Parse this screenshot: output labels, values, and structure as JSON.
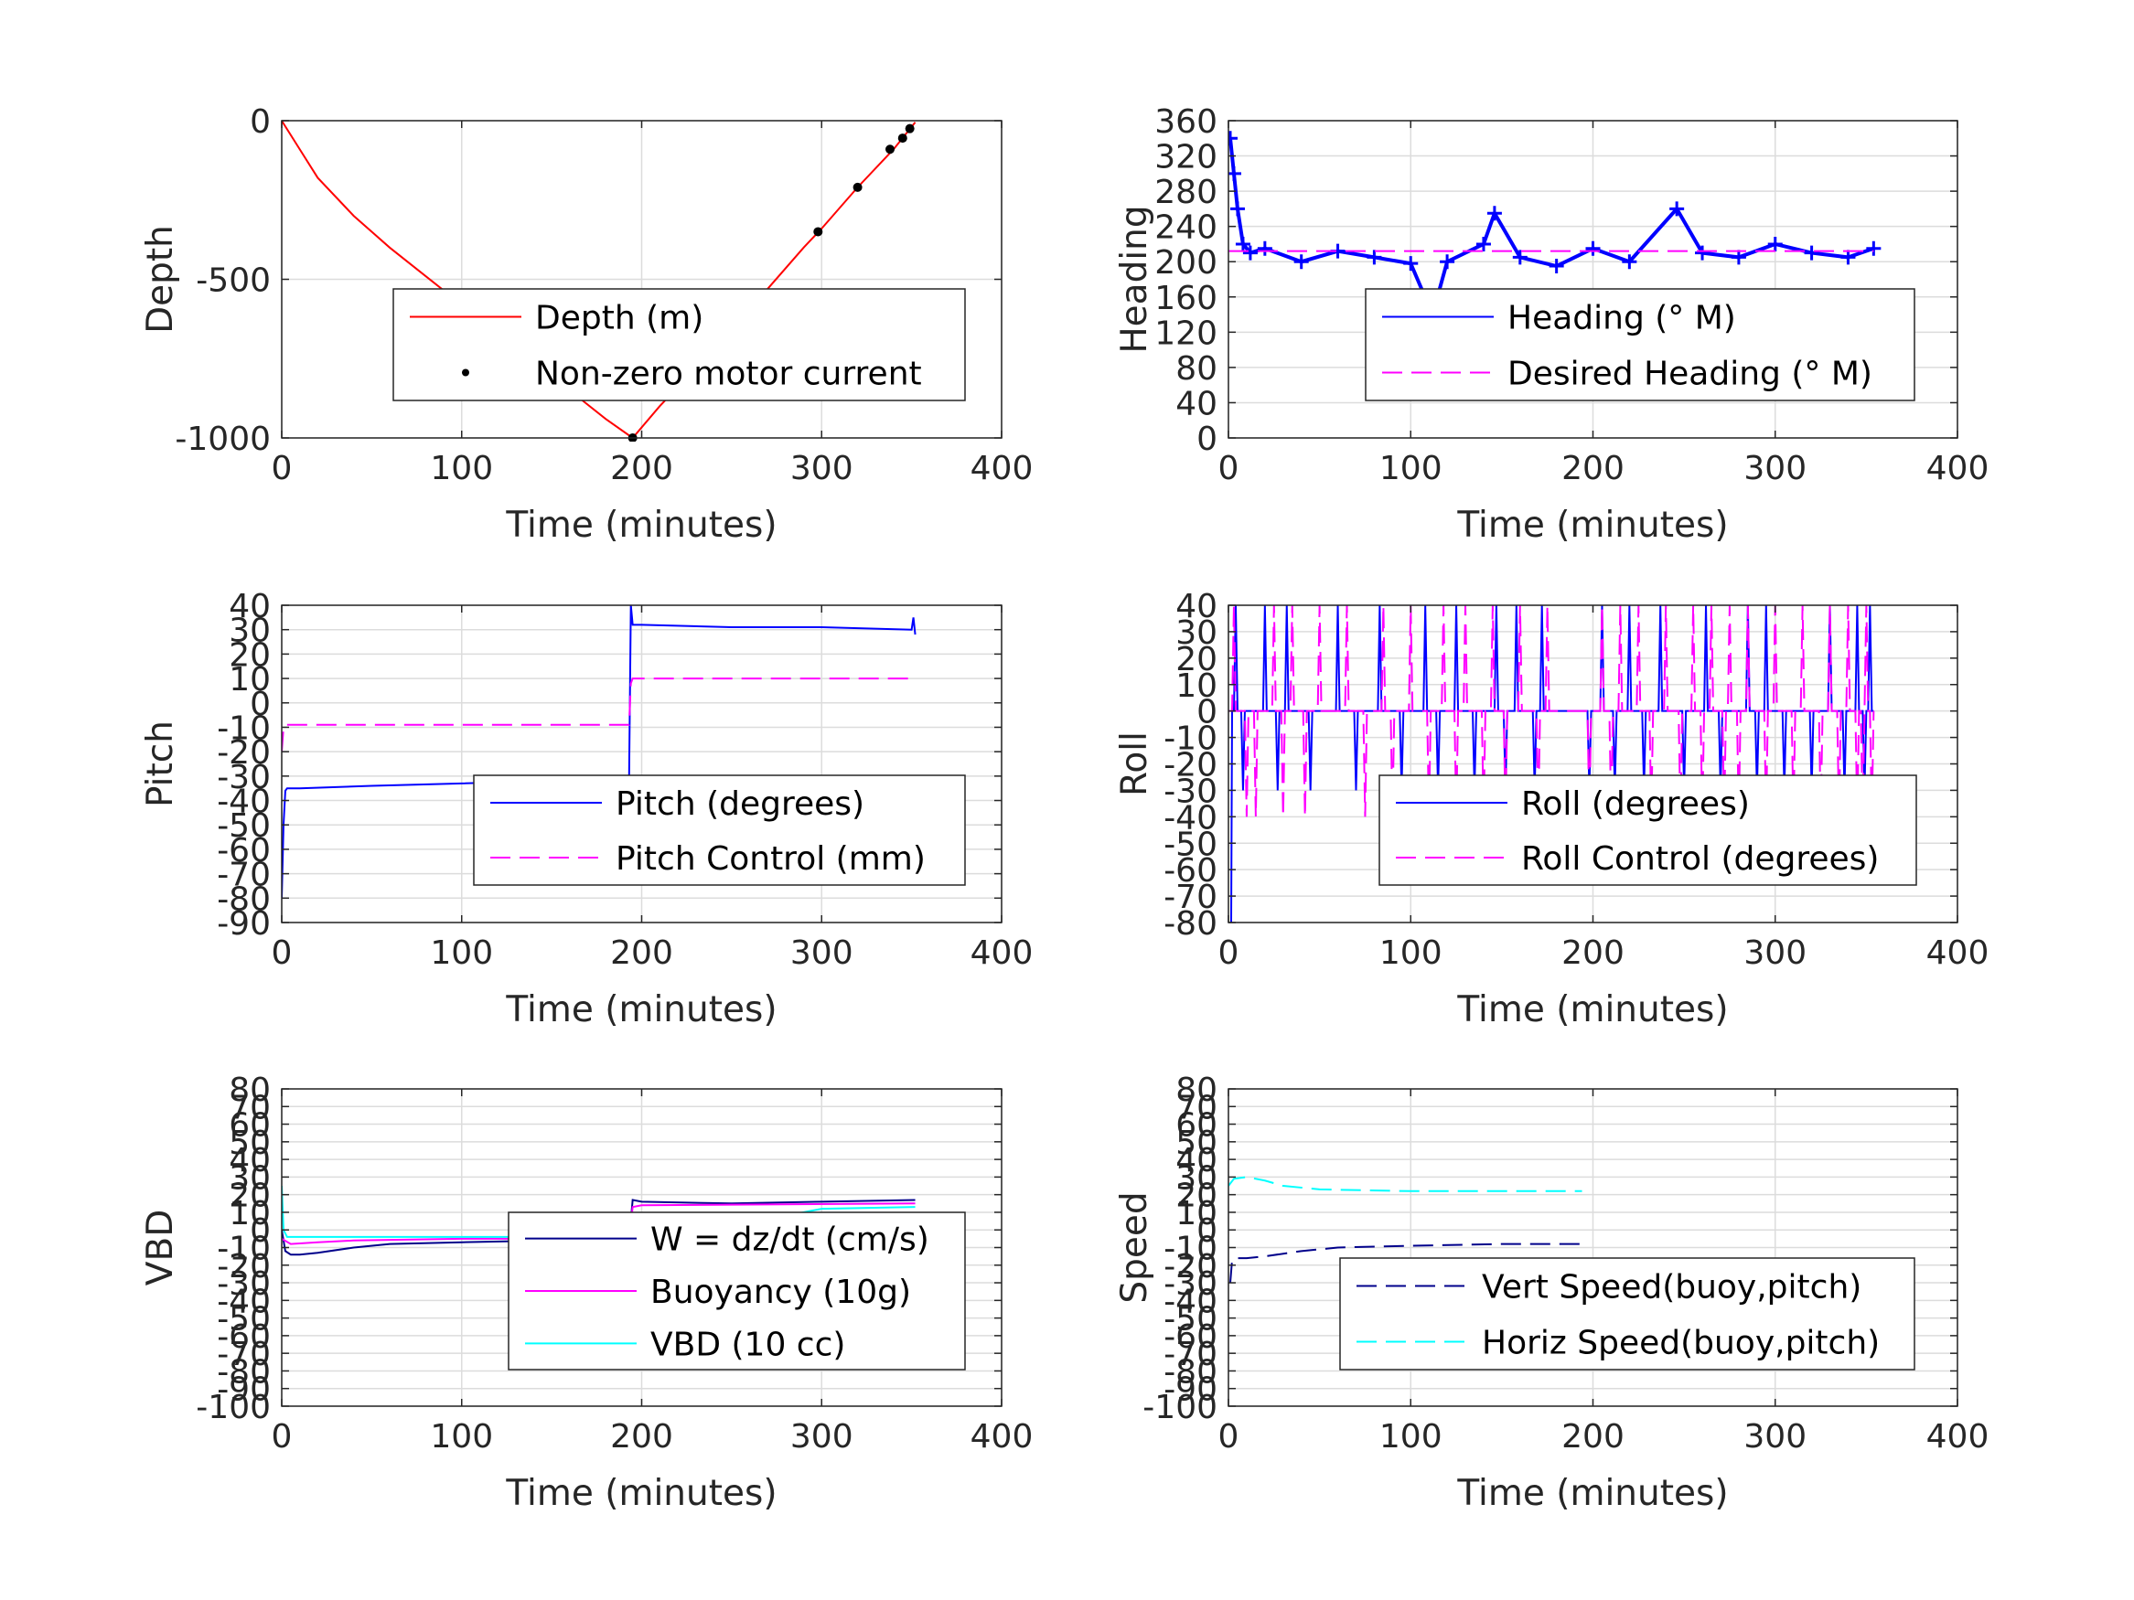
{
  "chart_data": [
    {
      "type": "line",
      "xlabel": "Time (minutes)",
      "ylabel": "Depth",
      "xlim": [
        0,
        400
      ],
      "ylim": [
        -1000,
        0
      ],
      "xticks": [
        0,
        100,
        200,
        300,
        400
      ],
      "yticks": [
        -1000,
        -500,
        0
      ],
      "ytick_labels": [
        "-1000",
        "-500",
        "0"
      ],
      "grid": true,
      "legend": "center-right",
      "series": [
        {
          "name": "Depth (m)",
          "color": "#ff0000",
          "style": "solid",
          "x": [
            0,
            10,
            20,
            40,
            60,
            80,
            100,
            120,
            140,
            160,
            180,
            195,
            210,
            230,
            250,
            270,
            290,
            300,
            320,
            340,
            352
          ],
          "y": [
            0,
            -90,
            -180,
            -300,
            -400,
            -490,
            -580,
            -670,
            -760,
            -850,
            -940,
            -1000,
            -900,
            -780,
            -660,
            -530,
            -400,
            -340,
            -210,
            -90,
            -5
          ]
        },
        {
          "name": "Non-zero motor current",
          "color": "#000000",
          "style": "markers",
          "x": [
            195,
            298,
            320,
            338,
            345,
            349
          ],
          "y": [
            -1000,
            -350,
            -210,
            -90,
            -55,
            -25
          ]
        }
      ]
    },
    {
      "type": "line",
      "xlabel": "Time (minutes)",
      "ylabel": "Heading",
      "xlim": [
        0,
        400
      ],
      "ylim": [
        0,
        360
      ],
      "xticks": [
        0,
        100,
        200,
        300,
        400
      ],
      "yticks": [
        0,
        40,
        80,
        120,
        160,
        200,
        240,
        280,
        320,
        360
      ],
      "ytick_labels": [
        "0",
        "40",
        "80",
        "120",
        "160",
        "200",
        "240",
        "280",
        "320",
        "360"
      ],
      "grid": true,
      "legend": "lower-right",
      "series": [
        {
          "name": "Heading (° M)",
          "color": "#0000ff",
          "style": "plus-markers",
          "x": [
            1,
            3,
            5,
            8,
            12,
            20,
            40,
            60,
            80,
            100,
            112,
            120,
            140,
            146,
            160,
            180,
            200,
            220,
            246,
            260,
            280,
            300,
            320,
            340,
            354
          ],
          "y": [
            340,
            300,
            260,
            220,
            210,
            215,
            200,
            212,
            205,
            198,
            140,
            200,
            220,
            255,
            205,
            195,
            215,
            200,
            260,
            210,
            205,
            220,
            210,
            205,
            215
          ]
        },
        {
          "name": "Desired Heading (° M)",
          "color": "#ff00ff",
          "style": "dashed",
          "x": [
            0,
            354
          ],
          "y": [
            212,
            212
          ]
        }
      ]
    },
    {
      "type": "line",
      "xlabel": "Time (minutes)",
      "ylabel": "Pitch",
      "xlim": [
        0,
        400
      ],
      "ylim": [
        -90,
        40
      ],
      "xticks": [
        0,
        100,
        200,
        300,
        400
      ],
      "yticks": [
        -90,
        -80,
        -70,
        -60,
        -50,
        -40,
        -30,
        -20,
        -10,
        0,
        10,
        20,
        30,
        40
      ],
      "ytick_labels": [
        "-90",
        "-80",
        "-70",
        "-60",
        "-50",
        "-40",
        "-30",
        "-20",
        "-10",
        "0",
        "10",
        "20",
        "30",
        "40"
      ],
      "grid": true,
      "legend": "lower-right",
      "series": [
        {
          "name": "Pitch (degrees)",
          "color": "#0000ff",
          "style": "solid",
          "x": [
            0,
            1,
            2,
            3,
            10,
            50,
            100,
            150,
            193,
            194,
            195,
            196,
            200,
            250,
            300,
            350,
            351,
            352
          ],
          "y": [
            -80,
            -50,
            -36,
            -35,
            -35,
            -34,
            -33,
            -32,
            -32,
            40,
            32,
            32,
            32,
            31,
            31,
            30,
            35,
            28
          ]
        },
        {
          "name": "Pitch Control (mm)",
          "color": "#ff00ff",
          "style": "dashed",
          "x": [
            0,
            1,
            2,
            5,
            193,
            194,
            195,
            200,
            352
          ],
          "y": [
            -20,
            -10,
            -9,
            -9,
            -9,
            8,
            10,
            10,
            10
          ]
        }
      ]
    },
    {
      "type": "line",
      "xlabel": "Time (minutes)",
      "ylabel": "Roll",
      "xlim": [
        0,
        400
      ],
      "ylim": [
        -80,
        40
      ],
      "xticks": [
        0,
        100,
        200,
        300,
        400
      ],
      "yticks": [
        -80,
        -70,
        -60,
        -50,
        -40,
        -30,
        -20,
        -10,
        0,
        10,
        20,
        30,
        40
      ],
      "ytick_labels": [
        "-80",
        "-70",
        "-60",
        "-50",
        "-40",
        "-30",
        "-20",
        "-10",
        "0",
        "10",
        "20",
        "30",
        "40"
      ],
      "grid": true,
      "legend": "lower-right",
      "series": [
        {
          "name": "Roll (degrees)",
          "color": "#0000ff",
          "style": "solid",
          "spikes_up": [
            4,
            20,
            32,
            60,
            83,
            108,
            125,
            147,
            158,
            172,
            205,
            220,
            237,
            262,
            285,
            295,
            330,
            345,
            352
          ],
          "spikes_down": [
            8,
            27,
            45,
            70,
            95,
            115,
            135,
            152,
            168,
            198,
            212,
            228,
            250,
            270,
            290,
            305,
            320,
            338,
            349
          ],
          "baseline": 0
        },
        {
          "name": "Roll Control (degrees)",
          "color": "#ff00ff",
          "style": "dashed",
          "spikes_up": [
            3,
            25,
            35,
            50,
            65,
            85,
            100,
            118,
            130,
            145,
            160,
            175,
            205,
            215,
            225,
            240,
            255,
            265,
            275,
            285,
            300,
            315,
            330,
            340,
            350
          ],
          "spikes_down": [
            10,
            15,
            30,
            42,
            75,
            90,
            110,
            125,
            140,
            152,
            170,
            198,
            210,
            232,
            248,
            260,
            272,
            280,
            295,
            310,
            325,
            335,
            345,
            348,
            353
          ],
          "baseline": 0
        }
      ]
    },
    {
      "type": "line",
      "xlabel": "Time (minutes)",
      "ylabel": "VBD",
      "xlim": [
        0,
        400
      ],
      "ylim": [
        -100,
        80
      ],
      "xticks": [
        0,
        100,
        200,
        300,
        400
      ],
      "yticks": [
        -100,
        -90,
        -80,
        -70,
        -60,
        -50,
        -40,
        -30,
        -20,
        -10,
        0,
        10,
        20,
        30,
        40,
        50,
        60,
        70,
        80
      ],
      "ytick_labels": [
        "-100",
        "-90",
        "-80",
        "-70",
        "-60",
        "-50",
        "-40",
        "-30",
        "-20",
        "-10",
        "0",
        "10",
        "20",
        "30",
        "40",
        "50",
        "60",
        "70",
        "80"
      ],
      "grid": true,
      "legend": "lower-right",
      "series": [
        {
          "name": "W = dz/dt (cm/s)",
          "color": "#00008b",
          "style": "solid",
          "x": [
            0,
            2,
            5,
            10,
            20,
            40,
            60,
            100,
            150,
            193,
            195,
            200,
            250,
            300,
            352
          ],
          "y": [
            0,
            -12,
            -14,
            -14,
            -13,
            -10,
            -8,
            -7,
            -6,
            -6,
            17,
            16,
            15,
            16,
            17
          ]
        },
        {
          "name": "Buoyancy (10g)",
          "color": "#ff00ff",
          "style": "solid",
          "x": [
            0,
            5,
            20,
            40,
            100,
            193,
            195,
            200,
            352
          ],
          "y": [
            -5,
            -8,
            -7,
            -6,
            -5,
            -5,
            13,
            14,
            15
          ]
        },
        {
          "name": "VBD (10 cc)",
          "color": "#00ffff",
          "style": "solid",
          "x": [
            0,
            1,
            3,
            10,
            40,
            100,
            193,
            195,
            280,
            300,
            352
          ],
          "y": [
            25,
            0,
            -4,
            -4,
            -4,
            -4,
            -4,
            8,
            8,
            12,
            13
          ]
        }
      ]
    },
    {
      "type": "line",
      "xlabel": "Time (minutes)",
      "ylabel": "Speed",
      "xlim": [
        0,
        400
      ],
      "ylim": [
        -100,
        80
      ],
      "xticks": [
        0,
        100,
        200,
        300,
        400
      ],
      "yticks": [
        -100,
        -90,
        -80,
        -70,
        -60,
        -50,
        -40,
        -30,
        -20,
        -10,
        0,
        10,
        20,
        30,
        40,
        50,
        60,
        70,
        80
      ],
      "ytick_labels": [
        "-100",
        "-90",
        "-80",
        "-70",
        "-60",
        "-50",
        "-40",
        "-30",
        "-20",
        "-10",
        "0",
        "10",
        "20",
        "30",
        "40",
        "50",
        "60",
        "70",
        "80"
      ],
      "grid": true,
      "legend": "lower-right",
      "series": [
        {
          "name": "Vert Speed(buoy,pitch)",
          "color": "#00008b",
          "style": "dashed",
          "x": [
            1,
            2,
            5,
            10,
            20,
            40,
            60,
            100,
            150,
            194
          ],
          "y": [
            -30,
            -17,
            -16,
            -16,
            -15,
            -12,
            -10,
            -9,
            -8,
            -8
          ]
        },
        {
          "name": "Horiz Speed(buoy,pitch)",
          "color": "#00ffff",
          "style": "dashed",
          "x": [
            0,
            3,
            10,
            20,
            30,
            50,
            100,
            150,
            194
          ],
          "y": [
            25,
            29,
            30,
            28,
            25,
            23,
            22,
            22,
            22
          ]
        }
      ]
    }
  ]
}
